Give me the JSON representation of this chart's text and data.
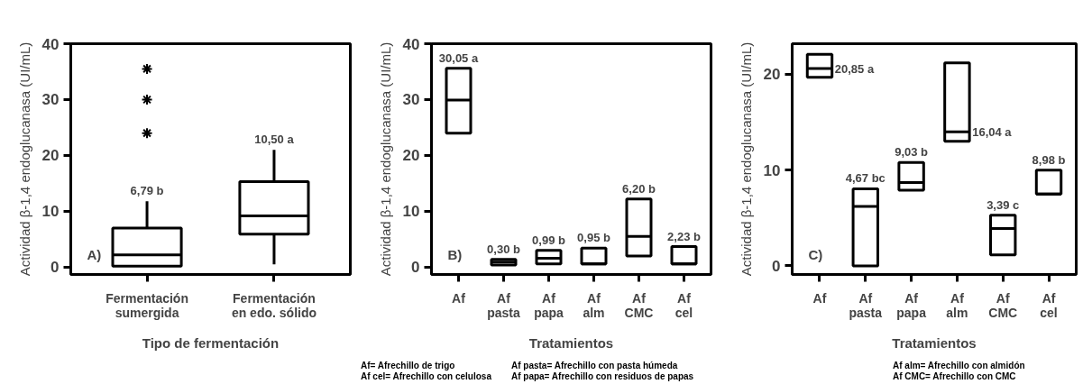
{
  "chart_data": [
    {
      "type": "box",
      "ylabel": "Actividad β-1,4 endoglucanasa (UI/mL)",
      "xlabel": "Tipo de fermentación",
      "categories": [
        "Fermentación\nsumergida",
        "Fermentación\nen edo. sólido"
      ],
      "ylim": [
        -1.3,
        40
      ],
      "yticks": [
        0,
        10,
        20,
        30,
        40
      ],
      "boxes": [
        {
          "low": 0.2,
          "q1": 0.2,
          "median": 2.2,
          "q3": 7.0,
          "high": 11.8,
          "outliers": [
            24,
            30,
            35.5
          ]
        },
        {
          "low": 0.5,
          "q1": 5.9,
          "median": 9.2,
          "q3": 15.3,
          "high": 21
        }
      ],
      "annotations": [
        "A)",
        "6,79 b",
        "10,50 a"
      ]
    },
    {
      "type": "box",
      "ylabel": "Actividad β-1,4 endoglucanasa (UI/mL)",
      "xlabel": "Tratamientos",
      "categories": [
        "Af",
        "Af\npasta",
        "Af\npapa",
        "Af\nalm",
        "Af\nCMC",
        "Af\ncel"
      ],
      "ylim": [
        -1.3,
        40
      ],
      "yticks": [
        0,
        10,
        20,
        30,
        40
      ],
      "boxes": [
        {
          "low": 24.0,
          "q1": 24.0,
          "median": 29.9,
          "q3": 35.6,
          "high": 35.6
        },
        {
          "low": 0.4,
          "q1": 0.4,
          "median": 0.9,
          "q3": 1.4,
          "high": 1.4
        },
        {
          "low": 0.6,
          "q1": 0.6,
          "median": 1.6,
          "q3": 3.0,
          "high": 3.0
        },
        {
          "low": 0.6,
          "q1": 0.6,
          "median": 0.6,
          "q3": 3.4,
          "high": 3.4
        },
        {
          "low": 2.0,
          "q1": 2.0,
          "median": 5.5,
          "q3": 12.2,
          "high": 12.2
        },
        {
          "low": 0.6,
          "q1": 0.6,
          "median": 0.6,
          "q3": 3.7,
          "high": 3.7
        }
      ],
      "annotations": [
        "B)",
        "30,05 a",
        "0,30 b",
        "0,99 b",
        "0,95 b",
        "6,20 b",
        "2,23 b",
        "Af= Afrechillo de trigo",
        "Af cel= Afrechillo con celulosa",
        "Af pasta= Afrechillo con pasta húmeda",
        "Af papa= Afrechillo con residuos de papas"
      ]
    },
    {
      "type": "box",
      "ylabel": "Actividad β-1,4 endoglucanasa (UI/mL)",
      "xlabel": "Tratamientos",
      "categories": [
        "Af",
        "Af\npasta",
        "Af\npapa",
        "Af\nalm",
        "Af\nCMC",
        "Af\ncel"
      ],
      "ylim": [
        -0.9,
        23.2
      ],
      "yticks": [
        0,
        10,
        20
      ],
      "boxes": [
        {
          "low": 19.7,
          "q1": 19.7,
          "median": 20.6,
          "q3": 22.1,
          "high": 22.1
        },
        {
          "low": 0,
          "q1": 0,
          "median": 6.2,
          "q3": 8.05,
          "high": 8.05
        },
        {
          "low": 7.9,
          "q1": 7.9,
          "median": 8.7,
          "q3": 10.8,
          "high": 10.8
        },
        {
          "low": 13.0,
          "q1": 13.0,
          "median": 14.0,
          "q3": 21.2,
          "high": 21.2
        },
        {
          "low": 1.15,
          "q1": 1.15,
          "median": 3.9,
          "q3": 5.3,
          "high": 5.3
        },
        {
          "low": 7.5,
          "q1": 7.5,
          "median": 7.5,
          "q3": 10.0,
          "high": 10.0
        }
      ],
      "annotations": [
        "C)",
        "20,85 a",
        "4,67 bc",
        "9,03 b",
        "16,04 a",
        "3,39 c",
        "8,98 b",
        "Af alm= Afrechillo con almidón",
        "Af CMC= Afrechillo con CMC"
      ]
    }
  ]
}
